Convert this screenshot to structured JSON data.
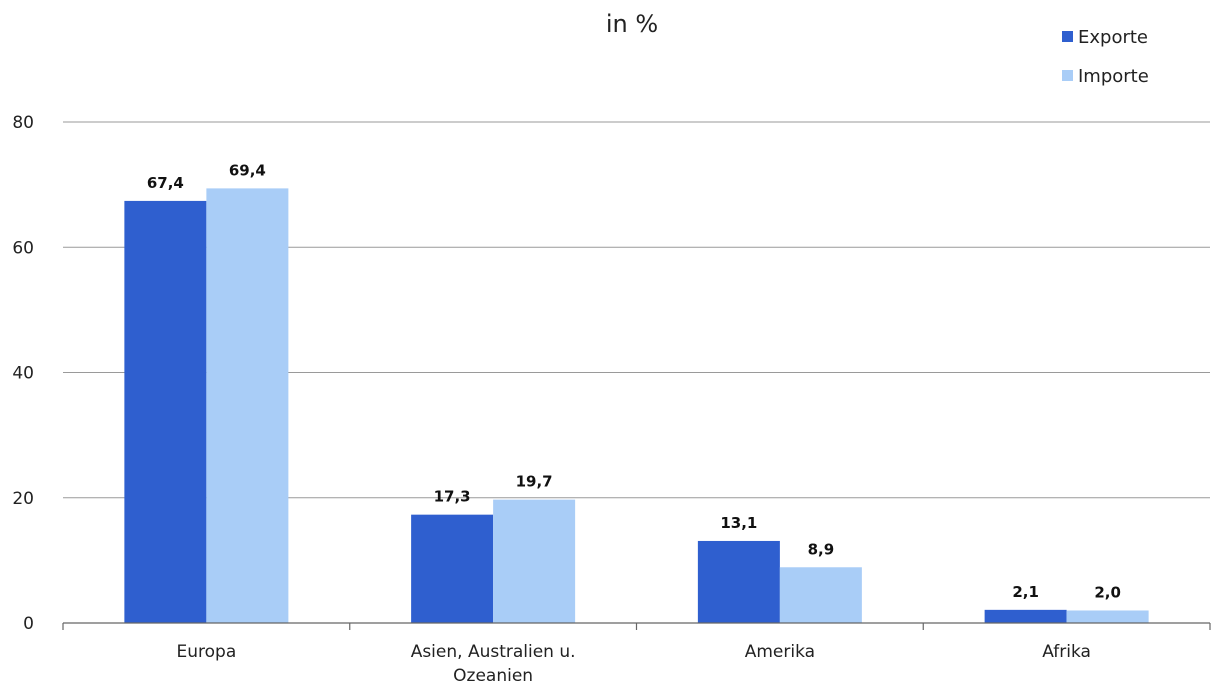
{
  "chart_data": {
    "type": "bar",
    "title": "in %",
    "categories": [
      [
        "Europa"
      ],
      [
        "Asien, Australien u.",
        "Ozeanien"
      ],
      [
        "Amerika"
      ],
      [
        "Afrika"
      ]
    ],
    "series": [
      {
        "name": "Exporte",
        "color": "#2f5fcf",
        "values": [
          67.4,
          17.3,
          13.1,
          2.1
        ],
        "labels": [
          "67,4",
          "17,3",
          "13,1",
          "2,1"
        ]
      },
      {
        "name": "Importe",
        "color": "#a9cdf7",
        "values": [
          69.4,
          19.7,
          8.9,
          2.0
        ],
        "labels": [
          "69,4",
          "19,7",
          "8,9",
          "2,0"
        ]
      }
    ],
    "ylim": [
      0,
      80
    ],
    "yticks": [
      0,
      20,
      40,
      60,
      80
    ],
    "grid": true,
    "legend_position": "top-right"
  }
}
